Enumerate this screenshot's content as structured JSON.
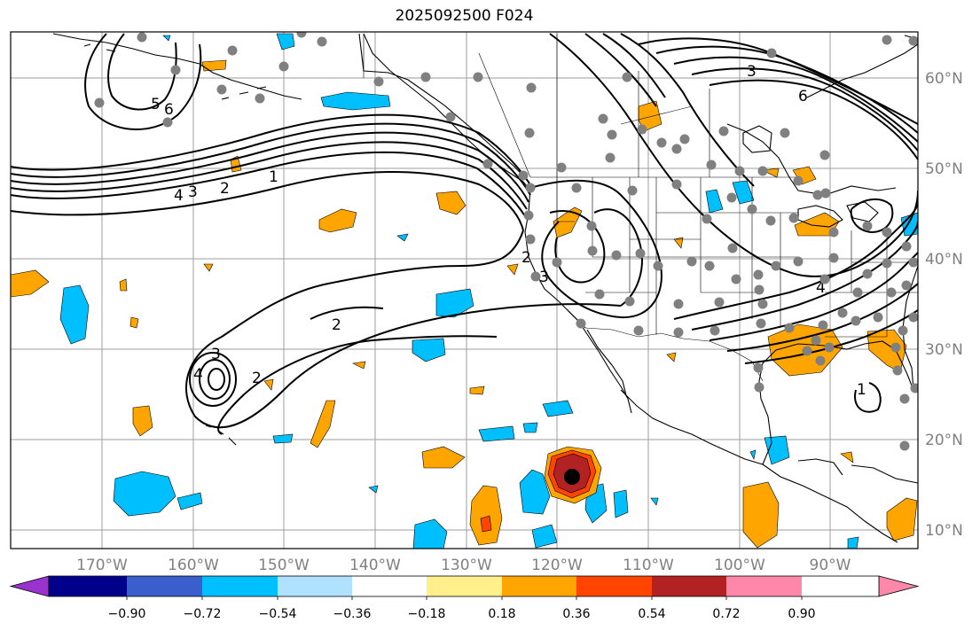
{
  "title": "2025092500 F024",
  "lat_labels": [
    "60°N",
    "50°N",
    "40°N",
    "30°N",
    "20°N",
    "10°N"
  ],
  "lon_labels": [
    "170°W",
    "160°W",
    "150°W",
    "140°W",
    "130°W",
    "120°W",
    "110°W",
    "100°W",
    "90°W"
  ],
  "colorbar": {
    "colors": [
      "#9a32cd",
      "#00008b",
      "#3a5fcd",
      "#00bfff",
      "#b0e2ff",
      "#ffffff",
      "#fff08c",
      "#ffa500",
      "#ff4500",
      "#b22222",
      "#ff88aa"
    ],
    "tick_labels": [
      "−0.90",
      "−0.72",
      "−0.54",
      "−0.36",
      "−0.18",
      "0.18",
      "0.36",
      "0.54",
      "0.72",
      "0.90"
    ]
  },
  "contour_labels": [
    "1",
    "2",
    "3",
    "4",
    "5",
    "6",
    "2",
    "3",
    "4",
    "1",
    "2",
    "3",
    "4",
    "2",
    "3",
    "6"
  ],
  "colors": {
    "land_outline": "#000000",
    "grid": "#9e9e9e",
    "station": "#808080",
    "positive": "#ffa500",
    "negative": "#00bfff",
    "strong_positive": "#b22222"
  }
}
